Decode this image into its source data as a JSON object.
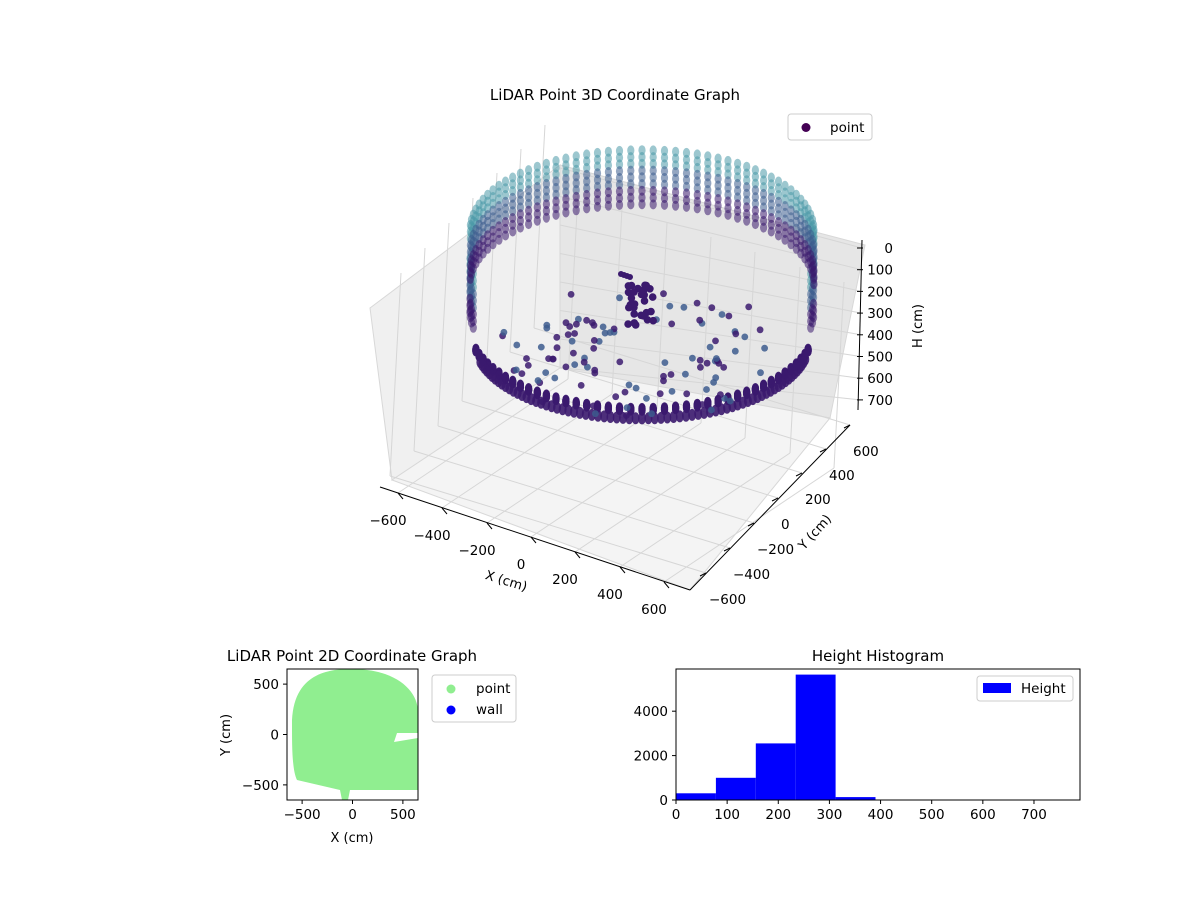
{
  "colors": {
    "background": "#ffffff",
    "pane": "#f2f2f2",
    "grid": "#d0d0d0",
    "point_dark": "#3b1a6e",
    "point_mid": "#3d5c8e",
    "point_light": "#4b99a7",
    "legend_point": "#440154",
    "scatter2d_point": "#90ee90",
    "scatter2d_wall": "#0000ff",
    "hist_bar": "#0000ff"
  },
  "chart_data": [
    {
      "type": "scatter",
      "projection": "3d",
      "title": "LiDAR Point 3D Coordinate Graph",
      "xlabel": "X (cm)",
      "ylabel": "Y (cm)",
      "zlabel": "H (cm)",
      "xlim": [
        -650,
        650
      ],
      "ylim": [
        -650,
        650
      ],
      "zlim": [
        750,
        0
      ],
      "z_inverted": true,
      "xticks": [
        "−600",
        "−400",
        "−200",
        "0",
        "200",
        "400",
        "600"
      ],
      "yticks": [
        "−600",
        "−400",
        "−200",
        "0",
        "200",
        "400",
        "600"
      ],
      "zticks": [
        "0",
        "100",
        "200",
        "300",
        "400",
        "500",
        "600",
        "700"
      ],
      "legend": [
        "point"
      ],
      "legend_loc": "upper right",
      "colormap": "viridis",
      "shape": "ring of points, radius about 600 cm, height about 0–250 cm",
      "grid": true
    },
    {
      "type": "scatter",
      "title": "LiDAR Point 2D Coordinate Graph",
      "xlabel": "X (cm)",
      "ylabel": "Y (cm)",
      "xlim": [
        -650,
        650
      ],
      "ylim": [
        -650,
        650
      ],
      "xticks": [
        "−500",
        "0",
        "500"
      ],
      "yticks": [
        "−500",
        "0",
        "500"
      ],
      "series": [
        {
          "name": "point",
          "color": "#90ee90"
        },
        {
          "name": "wall",
          "color": "#0000ff"
        }
      ],
      "legend_loc": "outside upper right",
      "grid": false
    },
    {
      "type": "bar",
      "title": "Height Histogram",
      "xlabel": "",
      "ylabel": "",
      "xlim": [
        0,
        790
      ],
      "ylim": [
        0,
        5900
      ],
      "xticks": [
        "0",
        "100",
        "200",
        "300",
        "400",
        "500",
        "600",
        "700"
      ],
      "yticks": [
        "0",
        "2000",
        "4000"
      ],
      "bin_edges": [
        0,
        78,
        156,
        234,
        312,
        390,
        468,
        546,
        624,
        702,
        780
      ],
      "values": [
        300,
        1000,
        2550,
        5650,
        130,
        0,
        0,
        0,
        0,
        0
      ],
      "series": [
        {
          "name": "Height",
          "color": "#0000ff"
        }
      ],
      "legend_loc": "upper right",
      "grid": false
    }
  ]
}
